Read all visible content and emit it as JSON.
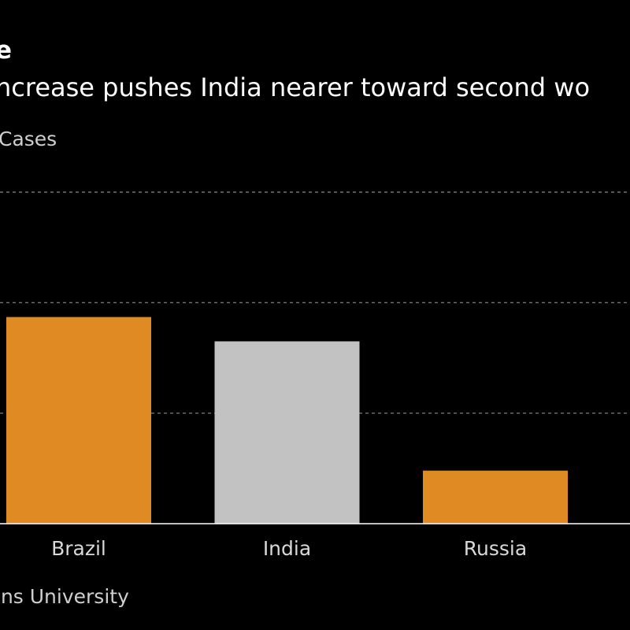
{
  "header": {
    "title": "e",
    "subtitle": "ncrease pushes India nearer toward second wo",
    "unit_label": "Cases"
  },
  "footer": {
    "source": "ins University"
  },
  "colors": {
    "background": "#000000",
    "highlight": "#E08A24",
    "neutral": "#C2C2C2",
    "gridline": "#8a8a8a"
  },
  "chart_data": {
    "type": "bar",
    "categories": [
      "Brazil",
      "India",
      "Russia"
    ],
    "values": [
      1.87,
      1.65,
      0.48
    ],
    "bar_colors": [
      "#E08A24",
      "#C2C2C2",
      "#E08A24"
    ],
    "ylim": [
      0,
      3
    ],
    "gridlines": [
      1,
      2,
      3
    ],
    "grid": true,
    "grid_style": "dashed",
    "xlabel": "",
    "ylabel": ""
  }
}
